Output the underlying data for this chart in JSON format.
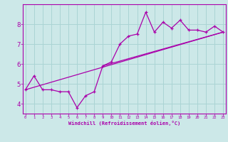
{
  "xlabel": "Windchill (Refroidissement éolien,°C)",
  "ylabel": "",
  "bg_color": "#cce8e8",
  "line_color": "#aa00aa",
  "grid_color": "#aad4d4",
  "x_ticks": [
    0,
    1,
    2,
    3,
    4,
    5,
    6,
    7,
    8,
    9,
    10,
    11,
    12,
    13,
    14,
    15,
    16,
    17,
    18,
    19,
    20,
    21,
    22,
    23
  ],
  "y_ticks": [
    4,
    5,
    6,
    7,
    8
  ],
  "xlim": [
    -0.3,
    23.3
  ],
  "ylim": [
    3.5,
    9.0
  ],
  "data_line": [
    [
      0,
      4.7
    ],
    [
      1,
      5.4
    ],
    [
      2,
      4.7
    ],
    [
      3,
      4.7
    ],
    [
      4,
      4.6
    ],
    [
      5,
      4.6
    ],
    [
      6,
      3.8
    ],
    [
      7,
      4.4
    ],
    [
      8,
      4.6
    ],
    [
      9,
      5.9
    ],
    [
      10,
      6.1
    ],
    [
      11,
      7.0
    ],
    [
      12,
      7.4
    ],
    [
      13,
      7.5
    ],
    [
      14,
      8.6
    ],
    [
      15,
      7.6
    ],
    [
      16,
      8.1
    ],
    [
      17,
      7.8
    ],
    [
      18,
      8.2
    ],
    [
      19,
      7.7
    ],
    [
      20,
      7.7
    ],
    [
      21,
      7.6
    ],
    [
      22,
      7.9
    ],
    [
      23,
      7.6
    ]
  ],
  "linear_line1": [
    [
      0,
      4.7
    ],
    [
      23,
      7.6
    ]
  ],
  "linear_line2": [
    [
      9,
      5.9
    ],
    [
      23,
      7.6
    ]
  ]
}
